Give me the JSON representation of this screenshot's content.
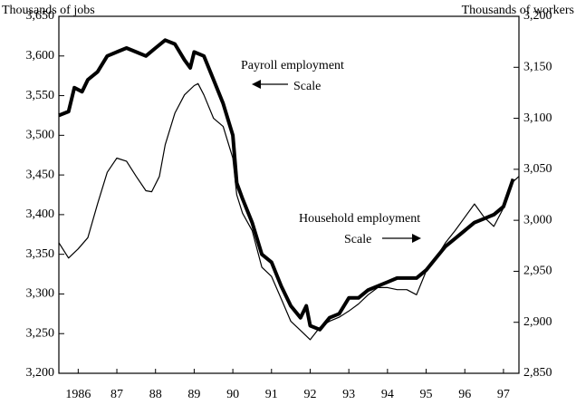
{
  "chart_data": {
    "type": "line",
    "y_axis_label": "Thousands of jobs",
    "y2_axis_label": "Thousands of workers",
    "annotations": [
      "Payroll employment",
      "Scale",
      "Household employment",
      "Scale"
    ],
    "xlim": [
      1986,
      1997.9
    ],
    "xticks": [
      {
        "value": 1986.5,
        "label": "1986"
      },
      {
        "value": 1987.5,
        "label": "87"
      },
      {
        "value": 1988.5,
        "label": "88"
      },
      {
        "value": 1989.5,
        "label": "89"
      },
      {
        "value": 1990.5,
        "label": "90"
      },
      {
        "value": 1991.5,
        "label": "91"
      },
      {
        "value": 1992.5,
        "label": "92"
      },
      {
        "value": 1993.5,
        "label": "93"
      },
      {
        "value": 1994.5,
        "label": "94"
      },
      {
        "value": 1995.5,
        "label": "95"
      },
      {
        "value": 1996.5,
        "label": "96"
      },
      {
        "value": 1997.5,
        "label": "97"
      }
    ],
    "ylim": [
      3200,
      3650
    ],
    "yticks": [
      {
        "value": 3200,
        "label": "3,200"
      },
      {
        "value": 3250,
        "label": "3,250"
      },
      {
        "value": 3300,
        "label": "3,300"
      },
      {
        "value": 3350,
        "label": "3,350"
      },
      {
        "value": 3400,
        "label": "3,400"
      },
      {
        "value": 3450,
        "label": "3,450"
      },
      {
        "value": 3500,
        "label": "3,500"
      },
      {
        "value": 3550,
        "label": "3,550"
      },
      {
        "value": 3600,
        "label": "3,600"
      },
      {
        "value": 3650,
        "label": "3,650"
      }
    ],
    "y2lim": [
      2850,
      3200
    ],
    "y2ticks": [
      {
        "value": 2850,
        "label": "2,850"
      },
      {
        "value": 2900,
        "label": "2,900"
      },
      {
        "value": 2950,
        "label": "2,950"
      },
      {
        "value": 3000,
        "label": "3,000"
      },
      {
        "value": 3050,
        "label": "3,050"
      },
      {
        "value": 3100,
        "label": "3,100"
      },
      {
        "value": 3150,
        "label": "3,150"
      },
      {
        "value": 3200,
        "label": "3,200"
      }
    ],
    "series": [
      {
        "name": "Payroll employment",
        "color": "#000000",
        "width": 4,
        "x": [
          1986.0,
          1986.25,
          1986.4,
          1986.6,
          1986.75,
          1987.0,
          1987.25,
          1987.5,
          1987.75,
          1988.0,
          1988.25,
          1988.5,
          1988.75,
          1989.0,
          1989.25,
          1989.4,
          1989.5,
          1989.75,
          1990.0,
          1990.25,
          1990.5,
          1990.6,
          1990.75,
          1991.0,
          1991.25,
          1991.5,
          1991.75,
          1992.0,
          1992.25,
          1992.4,
          1992.5,
          1992.75,
          1993.0,
          1993.25,
          1993.5,
          1993.75,
          1994.0,
          1994.25,
          1994.5,
          1994.75,
          1995.0,
          1995.25,
          1995.5,
          1995.75,
          1996.0,
          1996.25,
          1996.5,
          1996.75,
          1997.0,
          1997.25,
          1997.5,
          1997.75
        ],
        "values": [
          3525,
          3530,
          3560,
          3555,
          3570,
          3580,
          3600,
          3605,
          3610,
          3605,
          3600,
          3610,
          3620,
          3615,
          3595,
          3585,
          3605,
          3600,
          3570,
          3540,
          3500,
          3440,
          3420,
          3390,
          3350,
          3340,
          3310,
          3285,
          3270,
          3285,
          3260,
          3255,
          3270,
          3275,
          3295,
          3295,
          3305,
          3310,
          3315,
          3320,
          3320,
          3320,
          3330,
          3345,
          3360,
          3370,
          3380,
          3390,
          3395,
          3400,
          3410,
          3445
        ]
      },
      {
        "name": "Household employment",
        "color": "#000000",
        "width": 1.2,
        "axis": "y2",
        "x": [
          1986.0,
          1986.25,
          1986.5,
          1986.75,
          1987.0,
          1987.25,
          1987.5,
          1987.75,
          1988.0,
          1988.25,
          1988.4,
          1988.6,
          1988.75,
          1989.0,
          1989.25,
          1989.5,
          1989.6,
          1989.75,
          1990.0,
          1990.25,
          1990.5,
          1990.6,
          1990.75,
          1991.0,
          1991.25,
          1991.5,
          1991.75,
          1992.0,
          1992.25,
          1992.5,
          1992.75,
          1993.0,
          1993.25,
          1993.5,
          1993.75,
          1994.0,
          1994.25,
          1994.5,
          1994.75,
          1995.0,
          1995.25,
          1995.5,
          1995.75,
          1996.0,
          1996.25,
          1996.5,
          1996.75,
          1997.0,
          1997.25,
          1997.5,
          1997.75,
          1997.9
        ],
        "values": [
          2978,
          2963,
          2972,
          2983,
          3016,
          3047,
          3061,
          3058,
          3043,
          3029,
          3028,
          3043,
          3074,
          3105,
          3123,
          3132,
          3134,
          3123,
          3100,
          3092,
          3061,
          3025,
          3007,
          2990,
          2954,
          2945,
          2923,
          2901,
          2892,
          2883,
          2895,
          2901,
          2905,
          2911,
          2918,
          2927,
          2934,
          2934,
          2932,
          2932,
          2927,
          2950,
          2963,
          2978,
          2990,
          3003,
          3016,
          3003,
          2994,
          3012,
          3038,
          3043
        ]
      }
    ]
  }
}
